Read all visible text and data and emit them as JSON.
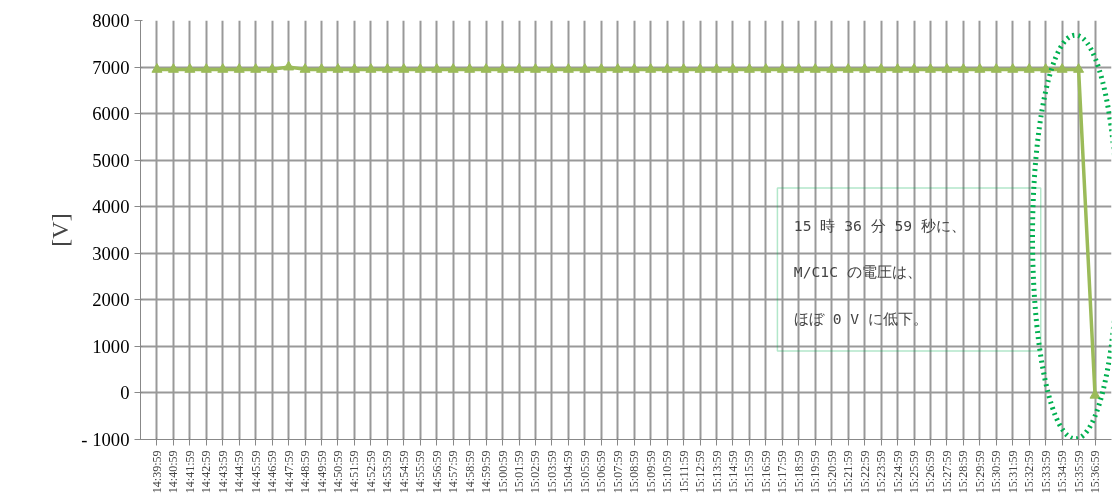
{
  "chart_data": {
    "type": "line",
    "ylabel": "[V]",
    "categories": [
      "14:39:59",
      "14:40:59",
      "14:41:59",
      "14:42:59",
      "14:43:59",
      "14:44:59",
      "14:45:59",
      "14:46:59",
      "14:47:59",
      "14:48:59",
      "14:49:59",
      "14:50:59",
      "14:51:59",
      "14:52:59",
      "14:53:59",
      "14:54:59",
      "14:55:59",
      "14:56:59",
      "14:57:59",
      "14:58:59",
      "14:59:59",
      "15:00:59",
      "15:01:59",
      "15:02:59",
      "15:03:59",
      "15:04:59",
      "15:05:59",
      "15:06:59",
      "15:07:59",
      "15:08:59",
      "15:09:59",
      "15:10:59",
      "15:11:59",
      "15:12:59",
      "15:13:59",
      "15:14:59",
      "15:15:59",
      "15:16:59",
      "15:17:59",
      "15:18:59",
      "15:19:59",
      "15:20:59",
      "15:21:59",
      "15:22:59",
      "15:23:59",
      "15:24:59",
      "15:25:59",
      "15:26:59",
      "15:27:59",
      "15:28:59",
      "15:29:59",
      "15:30:59",
      "15:31:59",
      "15:32:59",
      "15:33:59",
      "15:34:59",
      "15:35:59",
      "15:36:59"
    ],
    "series": [
      {
        "color": "#9bbb59",
        "values": [
          6950,
          6950,
          6950,
          6950,
          6950,
          6950,
          6950,
          6950,
          7000,
          6950,
          6950,
          6950,
          6950,
          6950,
          6950,
          6950,
          6950,
          6950,
          6950,
          6950,
          6950,
          6950,
          6950,
          6950,
          6950,
          6950,
          6950,
          6950,
          6950,
          6950,
          6950,
          6950,
          6950,
          6950,
          6950,
          6950,
          6950,
          6950,
          6950,
          6950,
          6950,
          6950,
          6950,
          6950,
          6950,
          6950,
          6950,
          6950,
          6950,
          6950,
          6950,
          6950,
          6950,
          6950,
          6950,
          6950,
          6950,
          -50
        ]
      }
    ],
    "ylim": [
      -1000,
      8000
    ],
    "yticks": [
      -1000,
      0,
      1000,
      2000,
      3000,
      4000,
      5000,
      6000,
      7000,
      8000
    ],
    "grid": true,
    "marker": "triangle",
    "line_style": "solid",
    "annotations": [
      "15 時 36 分 59 秒に、",
      "M/C1C の電圧は、",
      "ほぼ 0 V に低下。"
    ]
  }
}
